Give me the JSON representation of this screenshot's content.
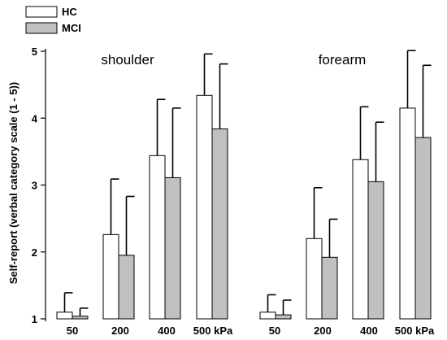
{
  "chart_data": {
    "type": "bar",
    "ylabel": "Self-report (verbal category scale (1 - 5))",
    "ylim": [
      1,
      5
    ],
    "yticks": [
      1,
      2,
      3,
      4,
      5
    ],
    "grid": false,
    "legend_position": "top-left",
    "error_bars": true,
    "groups": [
      {
        "label": "shoulder",
        "categories": [
          "50",
          "200",
          "400",
          "500 kPa"
        ],
        "series": [
          {
            "name": "HC",
            "values": [
              1.1,
              2.26,
              3.44,
              4.34
            ],
            "errors": [
              0.29,
              0.83,
              0.84,
              0.62
            ]
          },
          {
            "name": "MCI",
            "values": [
              1.04,
              1.95,
              3.11,
              3.84
            ],
            "errors": [
              0.12,
              0.88,
              1.04,
              0.97
            ]
          }
        ]
      },
      {
        "label": "forearm",
        "categories": [
          "50",
          "200",
          "400",
          "500 kPa"
        ],
        "series": [
          {
            "name": "HC",
            "values": [
              1.1,
              2.2,
              3.38,
              4.15
            ],
            "errors": [
              0.26,
              0.76,
              0.79,
              0.86
            ]
          },
          {
            "name": "MCI",
            "values": [
              1.06,
              1.92,
              3.05,
              3.71
            ],
            "errors": [
              0.22,
              0.57,
              0.89,
              1.08
            ]
          }
        ]
      }
    ],
    "colors": {
      "HC": "#ffffff",
      "MCI": "#c0c0c0",
      "stroke": "#000000"
    }
  }
}
